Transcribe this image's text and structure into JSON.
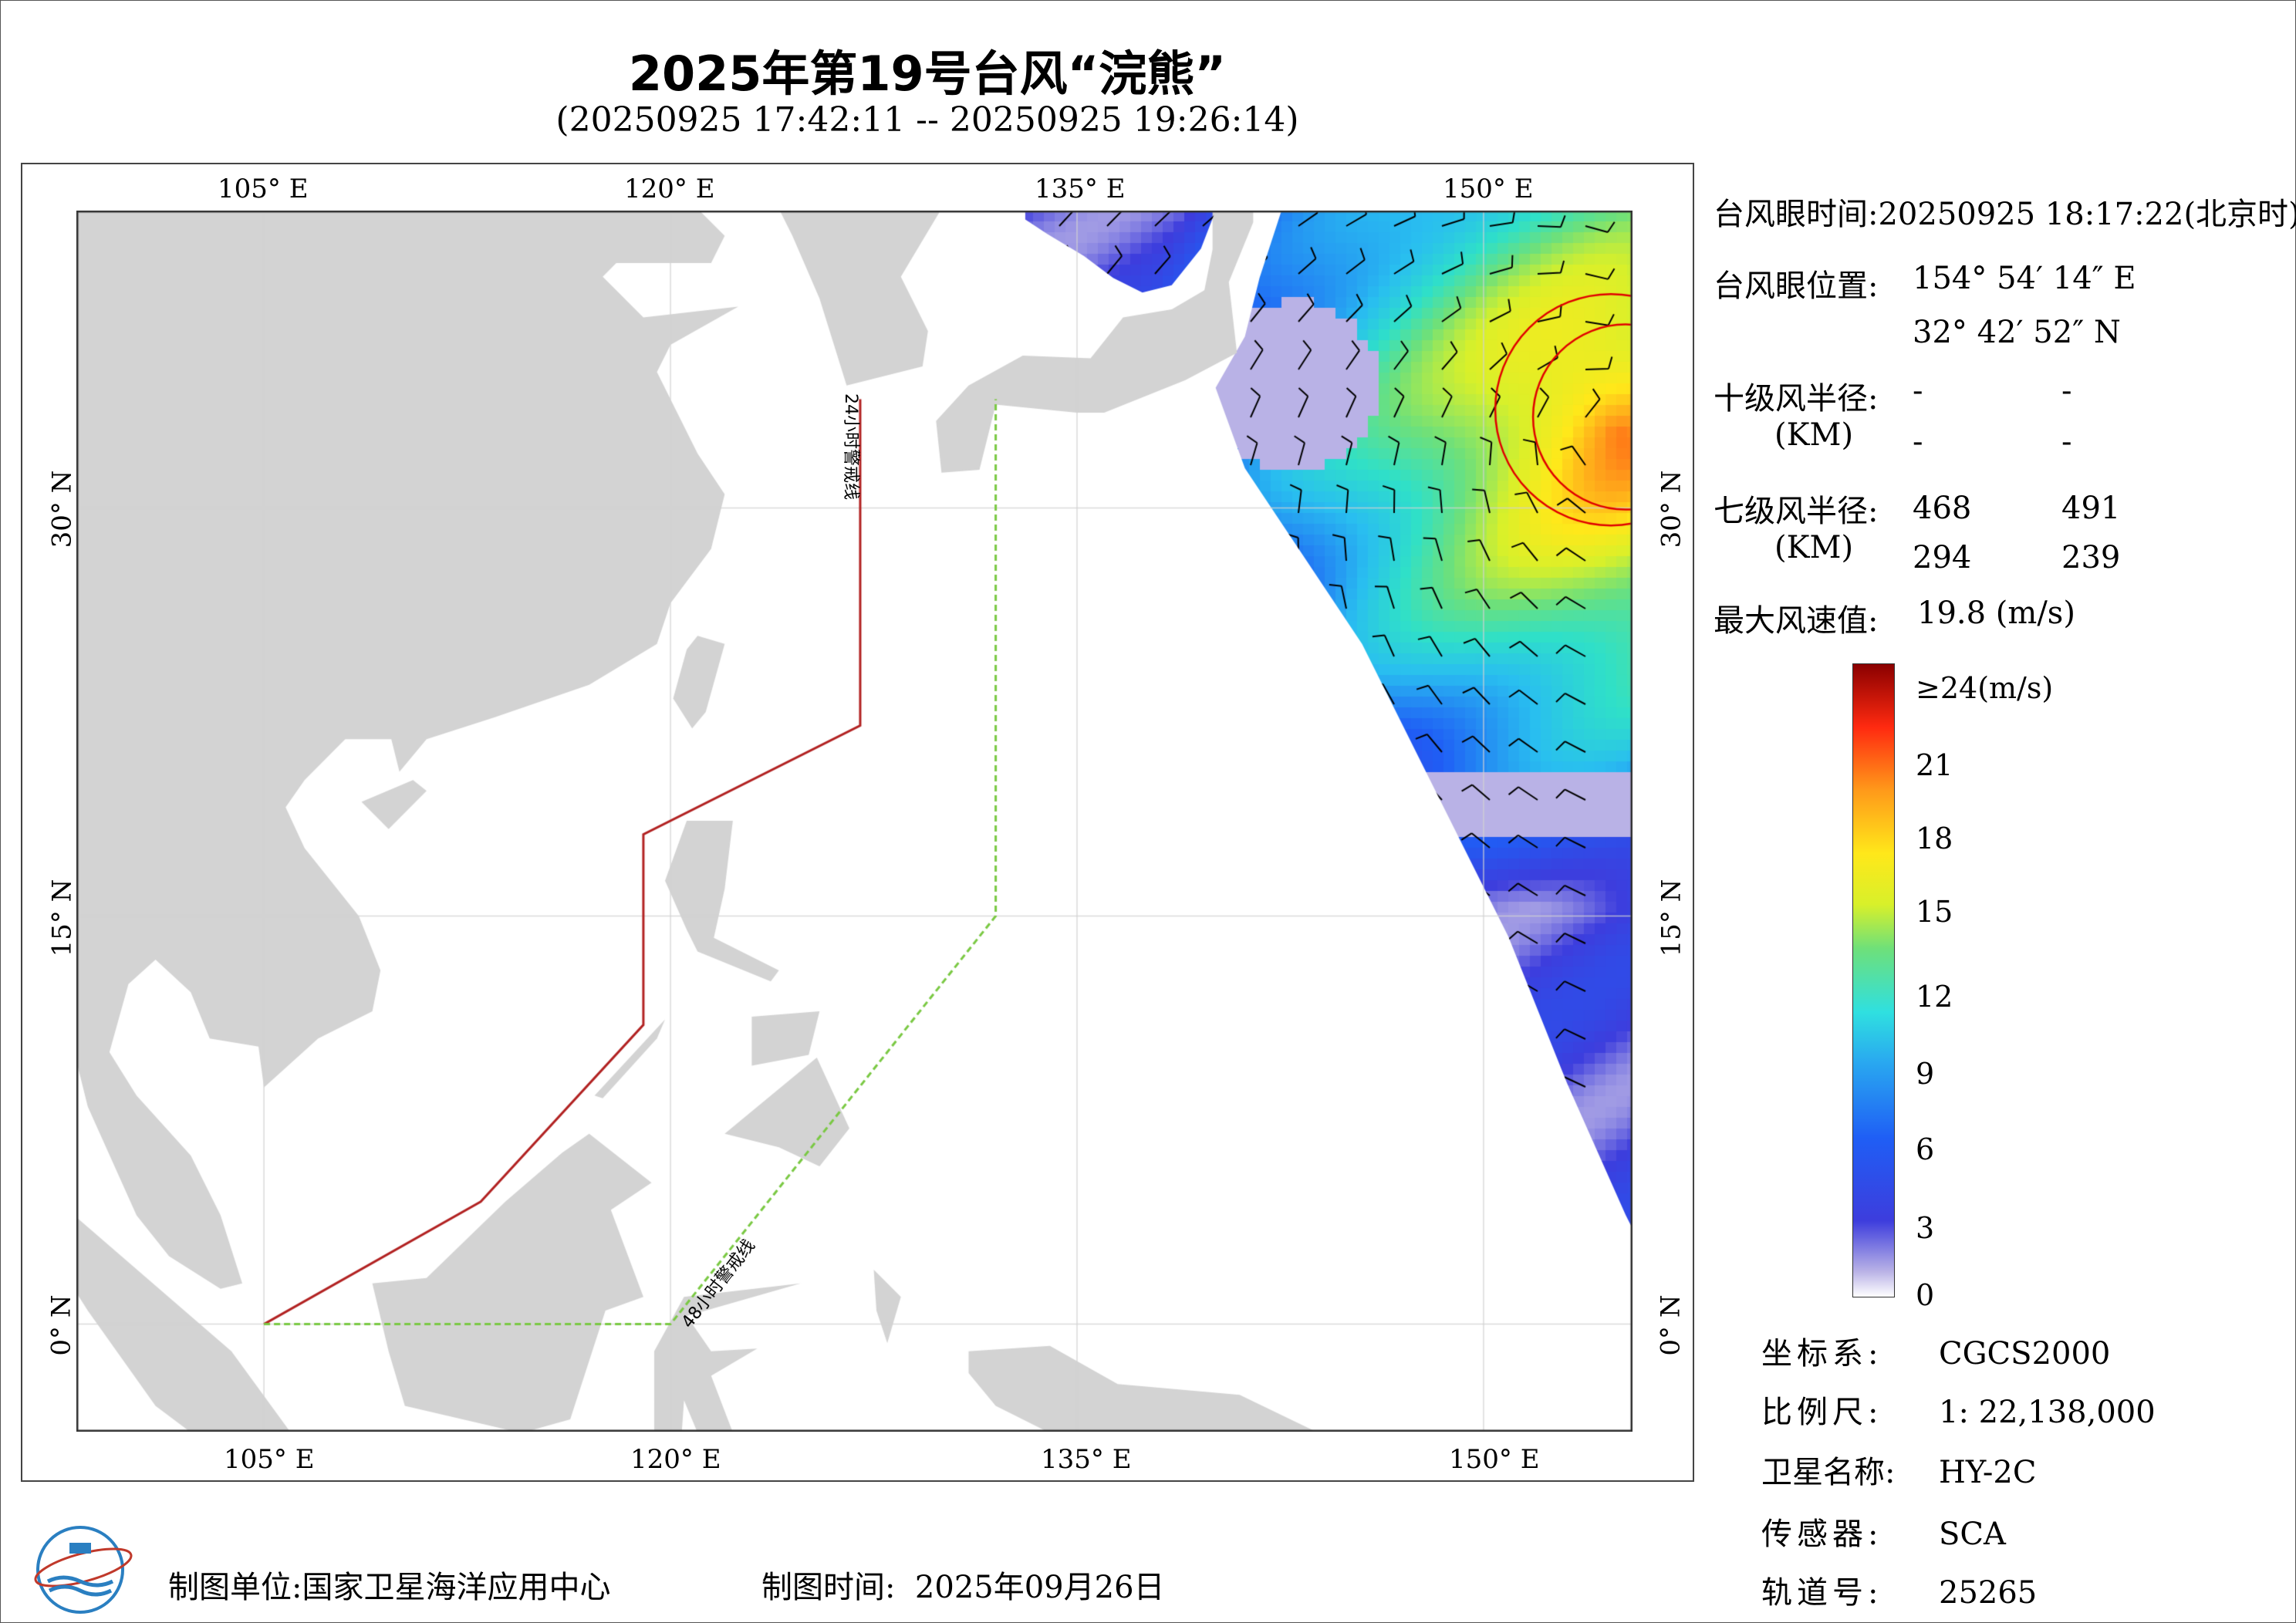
{
  "title": "2025年第19号台风“浣熊”",
  "subtitle": "(20250925 17:42:11 -- 20250925 19:26:14)",
  "map": {
    "lon_ticks": [
      "105° E",
      "120° E",
      "135° E",
      "150° E"
    ],
    "lat_ticks": [
      "30° N",
      "15° N",
      "0° N"
    ],
    "warning_24h": {
      "label": "24小时警戒线",
      "color": "#b22222",
      "points": [
        [
          105,
          0
        ],
        [
          113,
          4.5
        ],
        [
          119,
          11
        ],
        [
          119,
          18
        ],
        [
          127,
          22
        ],
        [
          127,
          34
        ]
      ]
    },
    "warning_48h": {
      "label": "48小时警戒线",
      "color": "#7ac943",
      "points": [
        [
          105,
          0
        ],
        [
          120,
          0
        ],
        [
          132,
          15
        ],
        [
          132,
          34
        ]
      ]
    },
    "land_color": "#d3d3d3",
    "typhoon_eye": {
      "lon": 154.904,
      "lat": 32.714
    }
  },
  "panel": {
    "eye_time_label": "台风眼时间:",
    "eye_time": "20250925 18:17:22(北京时)",
    "eye_pos_label": "台风眼位置:",
    "eye_lon": "154° 54′ 14″ E",
    "eye_lat": "32° 42′ 52″ N",
    "r10_label": "十级风半径:",
    "r10_unit": "(KM)",
    "r10": [
      "-",
      "-",
      "-",
      "-"
    ],
    "r7_label": "七级风半径:",
    "r7_unit": "(KM)",
    "r7": [
      "468",
      "491",
      "294",
      "239"
    ],
    "max_wind_label": "最大风速值:",
    "max_wind": "19.8  (m/s)"
  },
  "colorbar": {
    "labels": [
      "≥24(m/s)",
      "21",
      "18",
      "15",
      "12",
      "9",
      "6",
      "3",
      "0"
    ]
  },
  "info": [
    {
      "k": "坐标系:",
      "v": "CGCS2000"
    },
    {
      "k": "比例尺:",
      "v": "1: 22,138,000"
    },
    {
      "k": "卫星名称:",
      "v": "HY-2C"
    },
    {
      "k": "传感器:",
      "v": "SCA"
    },
    {
      "k": "轨道号:",
      "v": "25265"
    }
  ],
  "footer": {
    "unit_label": "制图单位:",
    "unit": "国家卫星海洋应用中心",
    "time_label": "制图时间:",
    "time": "2025年09月26日"
  }
}
